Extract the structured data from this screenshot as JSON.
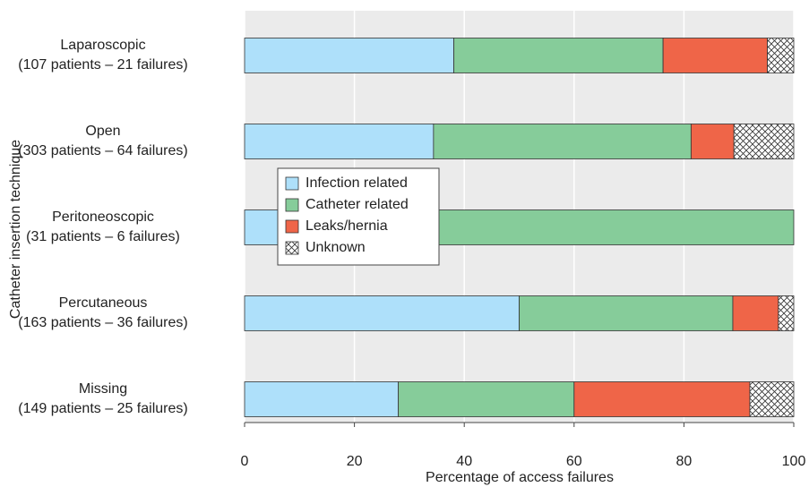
{
  "chart_data": {
    "type": "stacked-barh",
    "x_label": "Percentage of access failures",
    "y_label": "Catheter insertion technique",
    "categories": [
      "Laparoscopic\n(107 patients – 21 failures)",
      "Open\n(303 patients – 64 failures)",
      "Peritoneoscopic\n(31 patients – 6 failures)",
      "Percutaneous\n(163 patients – 36 failures)",
      "Missing\n(149 patients – 25 failures)"
    ],
    "series": [
      {
        "name": "Infection related",
        "color": "#aee0fa",
        "values": [
          38.1,
          34.4,
          16.7,
          50,
          28
        ]
      },
      {
        "name": "Catheter related",
        "color": "#86cc9a",
        "values": [
          38.1,
          46.9,
          83.3,
          38.9,
          32
        ]
      },
      {
        "name": "Leaks/hernia",
        "color": "#ef6548",
        "values": [
          19.0,
          7.8,
          0,
          8.3,
          32
        ]
      },
      {
        "name": "Unknown",
        "color": "#ffffff",
        "hatch": "crosshatch",
        "values": [
          4.8,
          10.9,
          0,
          2.8,
          8
        ]
      }
    ],
    "xlim": [
      0,
      100
    ],
    "xticks": [
      0,
      20,
      40,
      60,
      80,
      100
    ],
    "grid": true
  }
}
